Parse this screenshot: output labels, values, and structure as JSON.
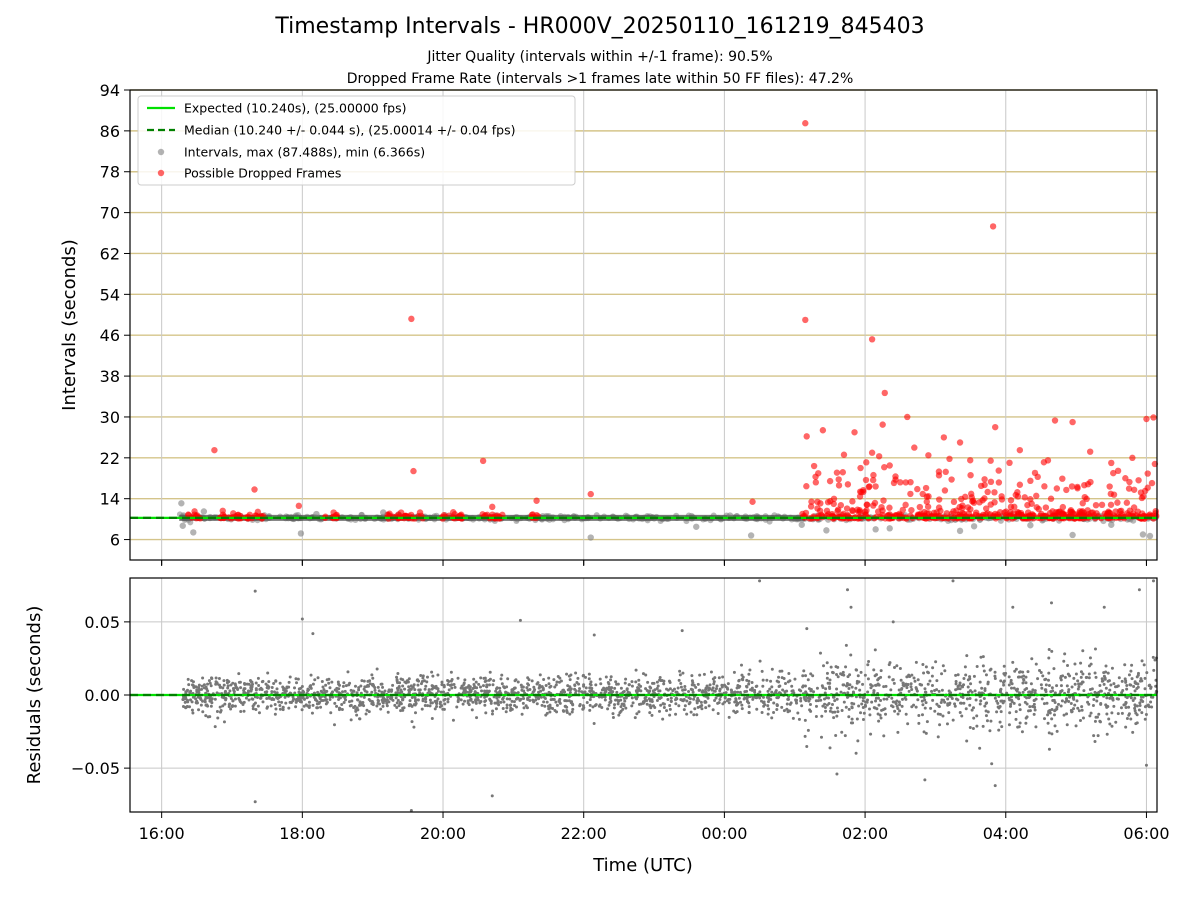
{
  "chart_data": [
    {
      "type": "scatter",
      "title": "Timestamp Intervals - HR000V_20250110_161219_845403",
      "subtitle_lines": [
        "Jitter Quality (intervals within +/-1 frame): 90.5%",
        "Dropped Frame Rate (intervals >1 frames late within 50 FF files): 47.2%"
      ],
      "ylabel": "Intervals (seconds)",
      "xlabel": "Time (UTC)",
      "x_range_hours": [
        15.55,
        30.15
      ],
      "ylim": [
        2,
        94
      ],
      "yticks": [
        "6",
        "14",
        "22",
        "30",
        "38",
        "46",
        "54",
        "62",
        "70",
        "78",
        "86",
        "94"
      ],
      "xticks": [
        "16:00",
        "18:00",
        "20:00",
        "22:00",
        "00:00",
        "02:00",
        "04:00",
        "06:00"
      ],
      "xtick_hours": [
        16,
        18,
        20,
        22,
        24,
        26,
        28,
        30
      ],
      "grid": "on",
      "legend_position": "top-left",
      "legend": [
        "Expected (10.240s), (25.00000 fps)",
        "Median (10.240 +/- 0.044 s), (25.00014 +/- 0.04 fps)",
        "Intervals, max (87.488s), min (6.366s)",
        "Possible Dropped Frames"
      ],
      "expected_interval": 10.24,
      "median_interval": 10.24,
      "dropped_threshold_line": 10.24,
      "data_start_hour": 16.25,
      "data_end_hour": 30.15,
      "series": [
        {
          "name": "Possible Dropped Frames",
          "color": "#ff0000",
          "points": [
            [
              16.75,
              23.5
            ],
            [
              17.32,
              15.8
            ],
            [
              17.95,
              12.6
            ],
            [
              19.55,
              49.2
            ],
            [
              19.58,
              19.4
            ],
            [
              20.57,
              21.4
            ],
            [
              20.7,
              12.4
            ],
            [
              21.33,
              13.6
            ],
            [
              22.1,
              14.9
            ],
            [
              24.4,
              13.4
            ],
            [
              25.15,
              87.5
            ],
            [
              25.15,
              49.0
            ],
            [
              25.17,
              26.2
            ],
            [
              25.4,
              27.4
            ],
            [
              25.7,
              22.6
            ],
            [
              25.85,
              27.0
            ],
            [
              26.1,
              45.2
            ],
            [
              26.1,
              23.0
            ],
            [
              26.15,
              16.4
            ],
            [
              26.2,
              22.3
            ],
            [
              26.28,
              34.7
            ],
            [
              26.25,
              28.5
            ],
            [
              26.35,
              20.5
            ],
            [
              26.6,
              30.0
            ],
            [
              26.7,
              24.0
            ],
            [
              26.9,
              22.5
            ],
            [
              27.05,
              19.3
            ],
            [
              27.12,
              26.0
            ],
            [
              27.2,
              21.8
            ],
            [
              27.35,
              25.0
            ],
            [
              27.65,
              16.5
            ],
            [
              27.82,
              67.3
            ],
            [
              27.85,
              28.0
            ],
            [
              27.9,
              19.5
            ],
            [
              28.2,
              23.5
            ],
            [
              28.6,
              21.5
            ],
            [
              28.7,
              29.3
            ],
            [
              28.95,
              29.0
            ],
            [
              29.2,
              23.2
            ],
            [
              29.5,
              21.0
            ],
            [
              29.7,
              18.0
            ],
            [
              29.8,
              22.0
            ],
            [
              30.0,
              29.6
            ],
            [
              30.1,
              29.9
            ],
            [
              30.12,
              20.8
            ],
            [
              25.3,
              17.2
            ],
            [
              25.6,
              19.1
            ],
            [
              26.5,
              17.2
            ],
            [
              27.5,
              18.6
            ],
            [
              28.35,
              17.5
            ]
          ]
        },
        {
          "name": "Intervals, max (87.488s), min (6.366s)",
          "color": "#808080",
          "points": [
            [
              16.28,
              13.1
            ],
            [
              16.3,
              8.7
            ],
            [
              16.45,
              7.4
            ],
            [
              16.6,
              11.5
            ],
            [
              17.98,
              7.2
            ],
            [
              18.2,
              11.0
            ],
            [
              19.15,
              11.3
            ],
            [
              22.1,
              6.4
            ],
            [
              23.6,
              8.5
            ],
            [
              24.08,
              10.7
            ],
            [
              24.38,
              6.8
            ],
            [
              25.1,
              8.9
            ],
            [
              25.45,
              7.8
            ],
            [
              26.15,
              8.0
            ],
            [
              26.35,
              8.2
            ],
            [
              27.35,
              7.7
            ],
            [
              27.55,
              8.6
            ],
            [
              28.35,
              8.8
            ],
            [
              28.95,
              6.9
            ],
            [
              29.5,
              8.9
            ],
            [
              29.95,
              7.0
            ],
            [
              30.05,
              6.7
            ]
          ]
        }
      ]
    },
    {
      "type": "scatter",
      "ylabel": "Residuals (seconds)",
      "xlabel": "Time (UTC)",
      "ylim": [
        -0.08,
        0.08
      ],
      "yticks": [
        "0.05",
        "0.00",
        "−0.05"
      ],
      "ytick_values": [
        0.05,
        0.0,
        -0.05
      ],
      "xticks": [
        "16:00",
        "18:00",
        "20:00",
        "22:00",
        "00:00",
        "02:00",
        "04:00",
        "06:00"
      ],
      "grid": "on",
      "reference_line": 0.0,
      "series": [
        {
          "name": "Residuals",
          "color": "#808080",
          "outliers": [
            [
              17.33,
              0.071
            ],
            [
              18.0,
              0.052
            ],
            [
              18.15,
              0.042
            ],
            [
              17.33,
              -0.073
            ],
            [
              19.55,
              -0.079
            ],
            [
              20.7,
              -0.069
            ],
            [
              21.1,
              0.051
            ],
            [
              22.15,
              0.041
            ],
            [
              23.4,
              0.044
            ],
            [
              25.75,
              0.072
            ],
            [
              25.8,
              0.06
            ],
            [
              26.4,
              0.05
            ],
            [
              26.85,
              -0.058
            ],
            [
              27.25,
              0.078
            ],
            [
              27.8,
              -0.047
            ],
            [
              27.85,
              -0.062
            ],
            [
              28.1,
              0.06
            ],
            [
              28.65,
              0.063
            ],
            [
              29.4,
              0.06
            ],
            [
              29.9,
              0.072
            ],
            [
              30.0,
              -0.048
            ],
            [
              30.1,
              0.078
            ],
            [
              25.6,
              -0.054
            ],
            [
              24.5,
              0.078
            ]
          ]
        }
      ]
    }
  ]
}
